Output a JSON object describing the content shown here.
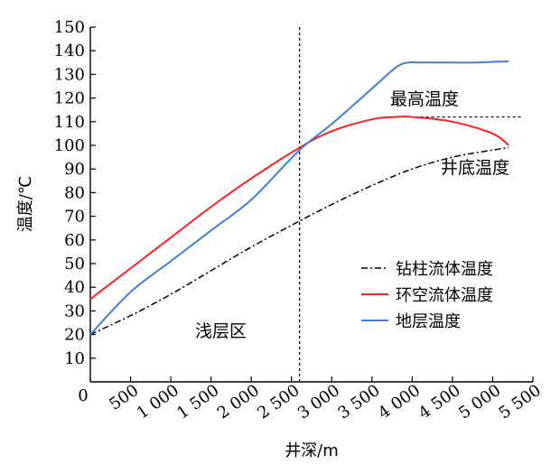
{
  "chart_data": {
    "type": "line",
    "xlabel": "井深/m",
    "ylabel": "温度/℃",
    "xlim": [
      0,
      5500
    ],
    "ylim": [
      0,
      150
    ],
    "x_ticks": [
      0,
      500,
      1000,
      1500,
      2000,
      2500,
      3000,
      3500,
      4000,
      4500,
      5000,
      5500
    ],
    "x_tick_labels": [
      "0",
      "500",
      "1 000",
      "1 500",
      "2 000",
      "2 500",
      "3 000",
      "3 500",
      "4 000",
      "4 500",
      "5 000",
      "5 500"
    ],
    "y_ticks": [
      10,
      20,
      30,
      40,
      50,
      60,
      70,
      80,
      90,
      100,
      110,
      120,
      130,
      140,
      150
    ],
    "y_tick_labels": [
      "10",
      "20",
      "30",
      "40",
      "50",
      "60",
      "70",
      "80",
      "90",
      "100",
      "110",
      "120",
      "130",
      "140",
      "150"
    ],
    "grid": false,
    "legend_position": "right-middle",
    "series": [
      {
        "name": "钻柱流体温度",
        "color": "#000000",
        "dash": "dashdot",
        "x": [
          0,
          500,
          1000,
          1500,
          2000,
          2600,
          3000,
          3500,
          4000,
          4500,
          5000,
          5200
        ],
        "y": [
          20,
          28,
          37,
          47,
          57,
          68,
          75,
          83,
          90,
          95,
          98,
          99
        ]
      },
      {
        "name": "环空流体温度",
        "color": "#ff2020",
        "dash": "solid",
        "x": [
          0,
          500,
          1000,
          1500,
          2000,
          2600,
          3000,
          3500,
          3800,
          4000,
          4500,
          5000,
          5200
        ],
        "y": [
          35,
          48,
          61,
          74,
          86,
          99,
          106,
          111,
          112,
          112,
          110,
          105,
          100
        ]
      },
      {
        "name": "地层温度",
        "color": "#3f7fd6",
        "dash": "solid",
        "x": [
          0,
          500,
          1000,
          1500,
          2000,
          2600,
          3000,
          3500,
          3800,
          3950,
          4100,
          4500,
          4800,
          5000,
          5200
        ],
        "y": [
          20,
          38,
          51,
          64,
          77,
          98,
          109,
          124,
          133,
          135,
          135,
          135,
          135,
          135.3,
          135.5
        ]
      }
    ],
    "reference_lines": {
      "vertical_x": 2600,
      "horizontal_y": 112,
      "horizontal_from_x": 3700
    },
    "annotations": {
      "max_temp": "最高温度",
      "bottom_temp": "井底温度",
      "shallow_zone": "浅层区"
    }
  }
}
